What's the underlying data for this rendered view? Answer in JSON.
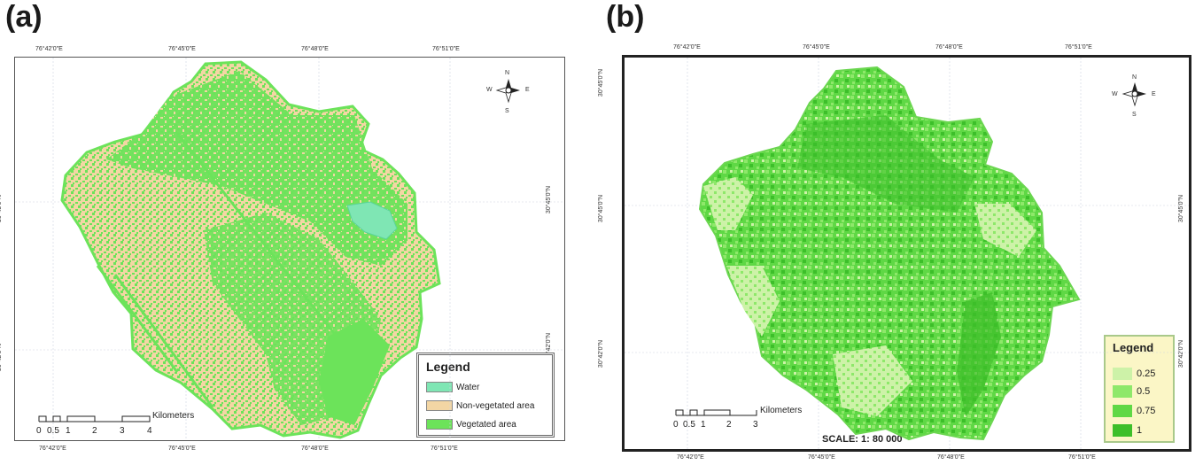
{
  "panels": [
    {
      "label": "(a)",
      "lon_ticks": [
        "76°42'0\"E",
        "76°45'0\"E",
        "76°48'0\"E",
        "76°51'0\"E"
      ],
      "lat_ticks": [
        "30°45'0\"N",
        "30°42'0\"N"
      ],
      "compass": {
        "n": "N",
        "s": "S",
        "e": "E",
        "w": "W"
      },
      "legend": {
        "title": "Legend",
        "items": [
          {
            "label": "Water",
            "color": "#7fe6b4"
          },
          {
            "label": "Non-vegetated area",
            "color": "#f3d6a4"
          },
          {
            "label": "Vegetated area",
            "color": "#6ce35a"
          }
        ]
      },
      "scalebar": {
        "ticks": [
          "0",
          "0.5",
          "1",
          "2",
          "3",
          "4"
        ],
        "unit": "Kilometers"
      }
    },
    {
      "label": "(b)",
      "lon_ticks": [
        "76°42'0\"E",
        "76°45'0\"E",
        "76°48'0\"E",
        "76°51'0\"E"
      ],
      "lat_ticks": [
        "30°45'0\"N",
        "30°42'0\"N"
      ],
      "compass": {
        "n": "N",
        "s": "S",
        "e": "E",
        "w": "W"
      },
      "legend": {
        "title": "Legend",
        "items": [
          {
            "label": "0.25",
            "color": "#cdf2a8"
          },
          {
            "label": "0.5",
            "color": "#8ee86a"
          },
          {
            "label": "0.75",
            "color": "#5fd845"
          },
          {
            "label": "1",
            "color": "#3dbf2a"
          }
        ]
      },
      "scalebar": {
        "ticks": [
          "0",
          "0.5",
          "1",
          "2",
          "3"
        ],
        "unit": "Kilometers"
      },
      "scale_text": "SCALE: 1: 80 000"
    }
  ]
}
